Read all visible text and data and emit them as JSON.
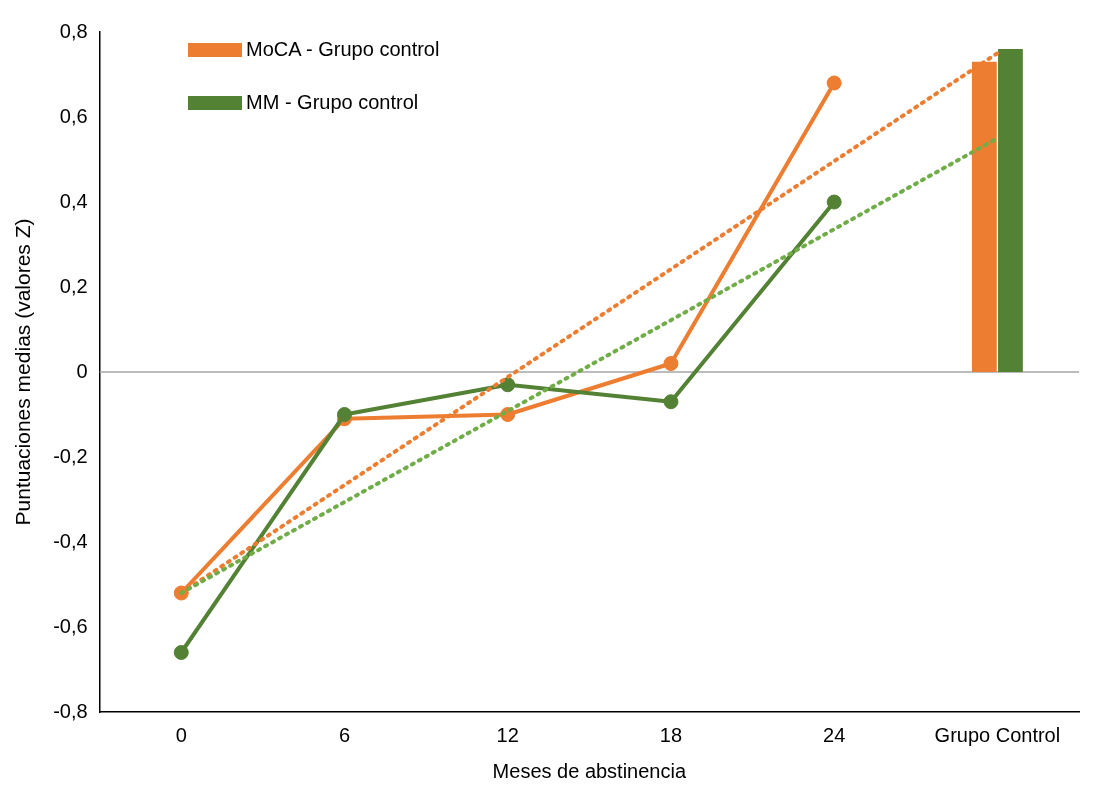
{
  "chart_data": {
    "type": "line",
    "xlabel": "Meses de abstinencia",
    "ylabel": "Puntuaciones medias (valores Z)",
    "categories": [
      "0",
      "6",
      "12",
      "18",
      "24",
      "Grupo Control"
    ],
    "series": [
      {
        "name": "MoCA - Grupo control",
        "type": "bar",
        "color": "#ed7d31",
        "values": [
          null,
          null,
          null,
          null,
          null,
          0.73
        ]
      },
      {
        "name": "MM - Grupo control",
        "type": "bar",
        "color": "#548235",
        "values": [
          null,
          null,
          null,
          null,
          null,
          0.76
        ]
      },
      {
        "color": "#ed7d31",
        "values": [
          -0.52,
          -0.11,
          -0.1,
          0.02,
          0.68,
          null
        ],
        "marker": "circle"
      },
      {
        "color": "#548235",
        "values": [
          -0.66,
          -0.1,
          -0.03,
          -0.07,
          0.4,
          null
        ],
        "marker": "circle"
      },
      {
        "color": "#ed7d31",
        "x": [
          "0",
          "Grupo Control"
        ],
        "values": [
          -0.52,
          0.75
        ],
        "line_style": "dotted"
      },
      {
        "color": "#70ad47",
        "x": [
          "0",
          "Grupo Control"
        ],
        "values": [
          -0.52,
          0.55
        ],
        "line_style": "dotted"
      }
    ],
    "ylim": [
      -0.8,
      0.8
    ],
    "yticks": [
      {
        "value": -0.8,
        "label": "-0,8"
      },
      {
        "value": -0.6,
        "label": "-0,6"
      },
      {
        "value": -0.4,
        "label": "-0,4"
      },
      {
        "value": -0.2,
        "label": "-0,2"
      },
      0,
      {
        "value": 0.2,
        "label": "0,2"
      },
      {
        "value": 0.4,
        "label": "0,4"
      },
      {
        "value": 0.6,
        "label": "0,6"
      },
      {
        "value": 0.8,
        "label": "0,8"
      }
    ],
    "ref_lines": [
      {
        "axis": "y",
        "value": 0,
        "color": "#a6a6a6"
      }
    ],
    "grid": false,
    "legend": "top left",
    "line_style": "solid"
  }
}
